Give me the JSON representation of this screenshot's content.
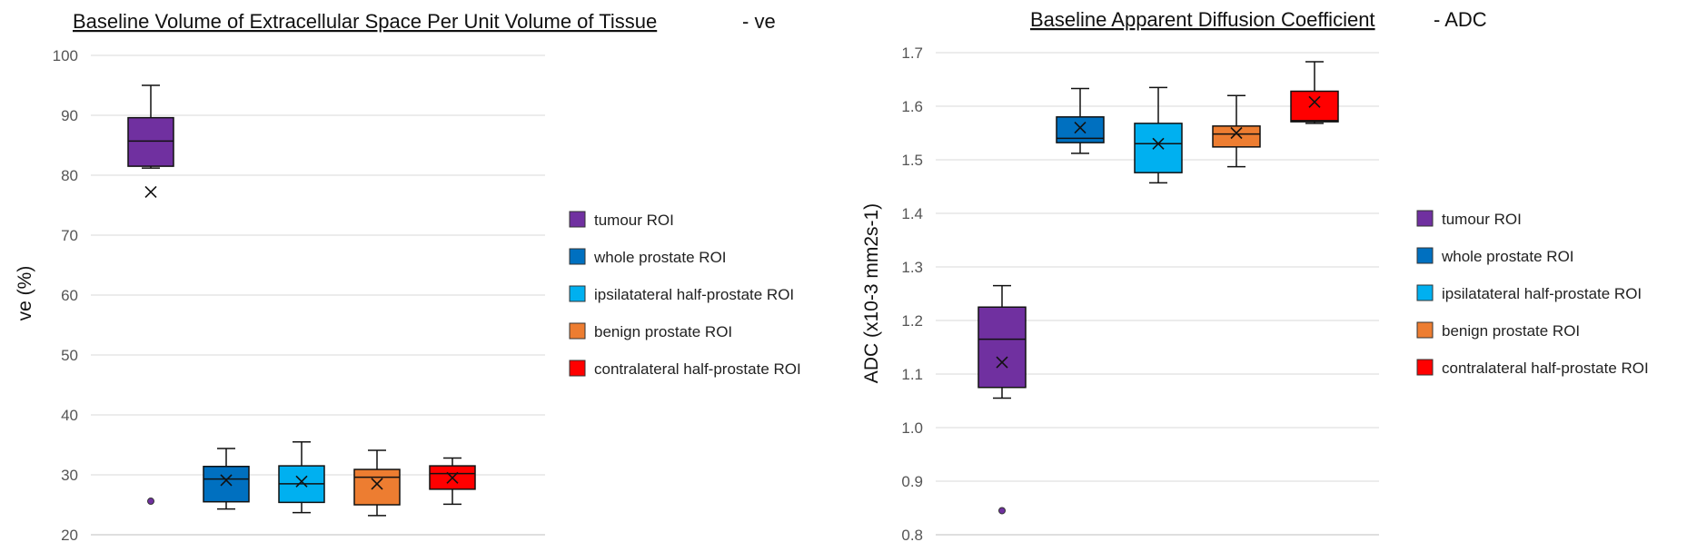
{
  "chart_data": [
    {
      "type": "box",
      "title": "Baseline Volume of Extracellular Space Per Unit Volume of Tissue",
      "title_suffix": "- ve",
      "ylabel": "ve (%)",
      "ylim": [
        20,
        100
      ],
      "yticks": [
        "20",
        "30",
        "40",
        "50",
        "60",
        "70",
        "80",
        "90",
        "100"
      ],
      "grid": true,
      "legend_position": "right",
      "series": [
        {
          "name": "tumour ROI",
          "color": "#7030A0",
          "min": 81.2,
          "q1": 81.5,
          "median": 85.7,
          "q3": 89.6,
          "max": 95.0,
          "mean": 77.2,
          "outliers": [
            25.6
          ]
        },
        {
          "name": "whole prostate ROI",
          "color": "#0070C0",
          "min": 24.3,
          "q1": 25.5,
          "median": 29.3,
          "q3": 31.4,
          "max": 34.4,
          "mean": 29.1,
          "outliers": []
        },
        {
          "name": "ipsilatateral half-prostate ROI",
          "color": "#00B0F0",
          "min": 23.7,
          "q1": 25.4,
          "median": 28.5,
          "q3": 31.5,
          "max": 35.5,
          "mean": 28.9,
          "outliers": []
        },
        {
          "name": "benign prostate ROI",
          "color": "#ED7D31",
          "min": 23.2,
          "q1": 25.0,
          "median": 29.6,
          "q3": 30.9,
          "max": 34.1,
          "mean": 28.5,
          "outliers": []
        },
        {
          "name": "contralateral half-prostate ROI",
          "color": "#FF0000",
          "min": 25.1,
          "q1": 27.6,
          "median": 30.2,
          "q3": 31.5,
          "max": 32.8,
          "mean": 29.5,
          "outliers": []
        }
      ]
    },
    {
      "type": "box",
      "title": "Baseline Apparent Diffusion Coefficient",
      "title_suffix": "- ADC",
      "ylabel": "ADC (x10-3 mm2s-1)",
      "ylim": [
        0.8,
        1.7
      ],
      "yticks": [
        "0.8",
        "0.9",
        "1.0",
        "1.1",
        "1.2",
        "1.3",
        "1.4",
        "1.5",
        "1.6",
        "1.7"
      ],
      "grid": true,
      "legend_position": "right",
      "series": [
        {
          "name": "tumour ROI",
          "color": "#7030A0",
          "min": 1.055,
          "q1": 1.075,
          "median": 1.165,
          "q3": 1.225,
          "max": 1.265,
          "mean": 1.122,
          "outliers": [
            0.845
          ]
        },
        {
          "name": "whole prostate ROI",
          "color": "#0070C0",
          "min": 1.512,
          "q1": 1.532,
          "median": 1.54,
          "q3": 1.58,
          "max": 1.633,
          "mean": 1.56,
          "outliers": []
        },
        {
          "name": "ipsilatateral half-prostate ROI",
          "color": "#00B0F0",
          "min": 1.457,
          "q1": 1.476,
          "median": 1.53,
          "q3": 1.568,
          "max": 1.635,
          "mean": 1.53,
          "outliers": []
        },
        {
          "name": "benign prostate ROI",
          "color": "#ED7D31",
          "min": 1.487,
          "q1": 1.524,
          "median": 1.548,
          "q3": 1.563,
          "max": 1.62,
          "mean": 1.55,
          "outliers": []
        },
        {
          "name": "contralateral half-prostate ROI",
          "color": "#FF0000",
          "min": 1.568,
          "q1": 1.571,
          "median": 1.573,
          "q3": 1.628,
          "max": 1.683,
          "mean": 1.608,
          "outliers": []
        }
      ]
    }
  ]
}
